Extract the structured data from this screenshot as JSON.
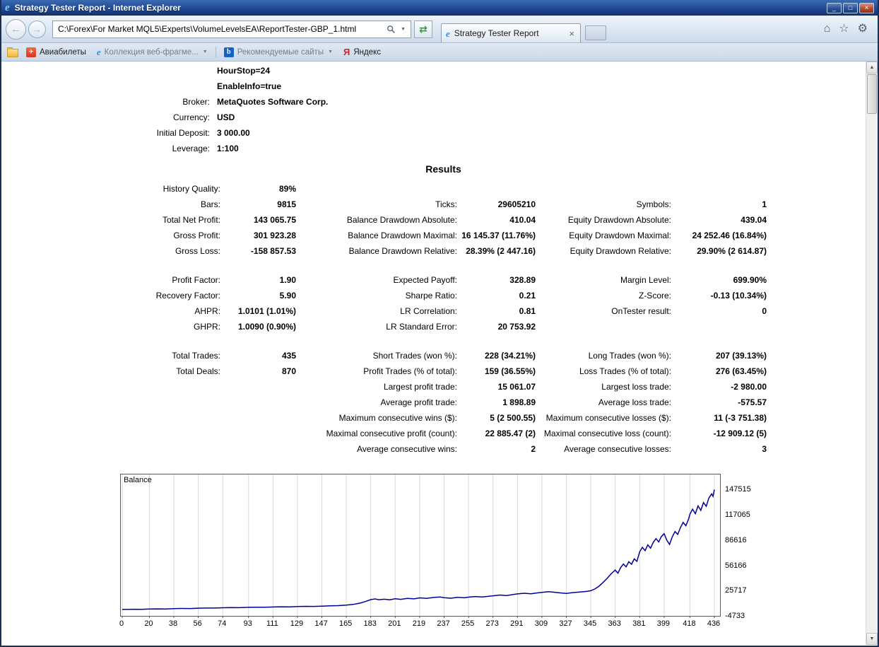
{
  "window": {
    "title": "Strategy Tester Report - Internet Explorer",
    "controls": {
      "minimize": "_",
      "maximize": "□",
      "close": "×"
    }
  },
  "nav": {
    "back": "←",
    "forward": "→",
    "address": "C:\\Forex\\For Market MQL5\\Experts\\VolumeLevelsEA\\ReportTester-GBP_1.html",
    "address_dropdown": "▼",
    "refresh": "⇄",
    "tab": {
      "title": "Strategy Tester Report",
      "close": "×"
    },
    "home_icon": "⌂",
    "favorites_icon": "☆",
    "settings_icon": "⚙"
  },
  "favorites_bar": {
    "items": [
      {
        "label": "Авиабилеты"
      },
      {
        "label": "Коллекция веб-фрагме...",
        "dropdown": "▼"
      },
      {
        "label": "Рекомендуемые сайты",
        "dropdown": "▼"
      },
      {
        "label": "Яндекс"
      }
    ],
    "avia_glyph": "✈",
    "bing_glyph": "b",
    "yandex_glyph": "Я"
  },
  "report": {
    "params": [
      {
        "label": "",
        "value": "HourStop=24"
      },
      {
        "label": "",
        "value": "EnableInfo=true"
      },
      {
        "label": "Broker:",
        "value": "MetaQuotes Software Corp."
      },
      {
        "label": "Currency:",
        "value": "USD"
      },
      {
        "label": "Initial Deposit:",
        "value": "3 000.00"
      },
      {
        "label": "Leverage:",
        "value": "1:100"
      }
    ],
    "results_heading": "Results",
    "results_rows": [
      [
        "History Quality:",
        "89%",
        "",
        "",
        "",
        ""
      ],
      [
        "Bars:",
        "9815",
        "Ticks:",
        "29605210",
        "Symbols:",
        "1"
      ],
      [
        "Total Net Profit:",
        "143 065.75",
        "Balance Drawdown Absolute:",
        "410.04",
        "Equity Drawdown Absolute:",
        "439.04"
      ],
      [
        "Gross Profit:",
        "301 923.28",
        "Balance Drawdown Maximal:",
        "16 145.37 (11.76%)",
        "Equity Drawdown Maximal:",
        "24 252.46 (16.84%)"
      ],
      [
        "Gross Loss:",
        "-158 857.53",
        "Balance Drawdown Relative:",
        "28.39% (2 447.16)",
        "Equity Drawdown Relative:",
        "29.90% (2 614.87)"
      ],
      null,
      [
        "Profit Factor:",
        "1.90",
        "Expected Payoff:",
        "328.89",
        "Margin Level:",
        "699.90%"
      ],
      [
        "Recovery Factor:",
        "5.90",
        "Sharpe Ratio:",
        "0.21",
        "Z-Score:",
        "-0.13 (10.34%)"
      ],
      [
        "AHPR:",
        "1.0101 (1.01%)",
        "LR Correlation:",
        "0.81",
        "OnTester result:",
        "0"
      ],
      [
        "GHPR:",
        "1.0090 (0.90%)",
        "LR Standard Error:",
        "20 753.92",
        "",
        ""
      ],
      null,
      [
        "Total Trades:",
        "435",
        "Short Trades (won %):",
        "228 (34.21%)",
        "Long Trades (won %):",
        "207 (39.13%)"
      ],
      [
        "Total Deals:",
        "870",
        "Profit Trades (% of total):",
        "159 (36.55%)",
        "Loss Trades (% of total):",
        "276 (63.45%)"
      ],
      [
        "",
        "",
        "Largest profit trade:",
        "15 061.07",
        "Largest loss trade:",
        "-2 980.00"
      ],
      [
        "",
        "",
        "Average profit trade:",
        "1 898.89",
        "Average loss trade:",
        "-575.57"
      ],
      [
        "",
        "",
        "Maximum consecutive wins ($):",
        "5 (2 500.55)",
        "Maximum consecutive losses ($):",
        "11 (-3 751.38)"
      ],
      [
        "",
        "",
        "Maximal consecutive profit (count):",
        "22 885.47 (2)",
        "Maximal consecutive loss (count):",
        "-12 909.12 (5)"
      ],
      [
        "",
        "",
        "Average consecutive wins:",
        "2",
        "Average consecutive losses:",
        "3"
      ]
    ]
  },
  "chart_data": {
    "type": "line",
    "title": "Balance",
    "line_color": "#000096",
    "grid": "vertical",
    "x_range": [
      0,
      436
    ],
    "y_range": [
      -4733,
      165847
    ],
    "x_ticks": [
      0,
      20,
      38,
      56,
      74,
      93,
      111,
      129,
      147,
      165,
      183,
      201,
      219,
      237,
      255,
      273,
      291,
      309,
      327,
      345,
      363,
      381,
      399,
      418,
      436
    ],
    "y_ticks": [
      -4733,
      25717,
      56166,
      86616,
      117065,
      147515
    ],
    "points": [
      [
        0,
        3000
      ],
      [
        5,
        3100
      ],
      [
        10,
        3250
      ],
      [
        14,
        3150
      ],
      [
        20,
        3500
      ],
      [
        26,
        3700
      ],
      [
        32,
        3650
      ],
      [
        38,
        4050
      ],
      [
        44,
        4250
      ],
      [
        50,
        4150
      ],
      [
        56,
        4550
      ],
      [
        62,
        4750
      ],
      [
        68,
        4700
      ],
      [
        74,
        5050
      ],
      [
        80,
        5250
      ],
      [
        86,
        5200
      ],
      [
        93,
        5550
      ],
      [
        99,
        5700
      ],
      [
        105,
        5650
      ],
      [
        111,
        6050
      ],
      [
        117,
        6250
      ],
      [
        123,
        6200
      ],
      [
        129,
        6550
      ],
      [
        135,
        6750
      ],
      [
        141,
        6700
      ],
      [
        147,
        7050
      ],
      [
        153,
        7350
      ],
      [
        159,
        7650
      ],
      [
        165,
        8300
      ],
      [
        170,
        9100
      ],
      [
        175,
        10600
      ],
      [
        179,
        12600
      ],
      [
        183,
        14900
      ],
      [
        186,
        15700
      ],
      [
        189,
        14800
      ],
      [
        193,
        15400
      ],
      [
        197,
        14700
      ],
      [
        201,
        15900
      ],
      [
        205,
        15200
      ],
      [
        210,
        16400
      ],
      [
        215,
        15800
      ],
      [
        219,
        17000
      ],
      [
        224,
        16300
      ],
      [
        229,
        17400
      ],
      [
        234,
        18000
      ],
      [
        237,
        17200
      ],
      [
        242,
        16600
      ],
      [
        247,
        17600
      ],
      [
        252,
        17100
      ],
      [
        255,
        17900
      ],
      [
        260,
        18600
      ],
      [
        265,
        18100
      ],
      [
        270,
        18900
      ],
      [
        273,
        19500
      ],
      [
        278,
        20400
      ],
      [
        283,
        19800
      ],
      [
        288,
        21000
      ],
      [
        291,
        21800
      ],
      [
        296,
        22600
      ],
      [
        301,
        22000
      ],
      [
        306,
        23100
      ],
      [
        309,
        23600
      ],
      [
        314,
        24400
      ],
      [
        319,
        23600
      ],
      [
        324,
        22800
      ],
      [
        327,
        22400
      ],
      [
        332,
        23400
      ],
      [
        337,
        24100
      ],
      [
        342,
        24800
      ],
      [
        345,
        25600
      ],
      [
        348,
        27800
      ],
      [
        351,
        31000
      ],
      [
        354,
        35500
      ],
      [
        357,
        40500
      ],
      [
        360,
        46000
      ],
      [
        363,
        50500
      ],
      [
        365,
        46800
      ],
      [
        367,
        53500
      ],
      [
        369,
        57800
      ],
      [
        371,
        54500
      ],
      [
        373,
        60500
      ],
      [
        375,
        57500
      ],
      [
        377,
        64000
      ],
      [
        379,
        61000
      ],
      [
        381,
        72500
      ],
      [
        383,
        78000
      ],
      [
        385,
        74000
      ],
      [
        387,
        81000
      ],
      [
        389,
        77000
      ],
      [
        391,
        84000
      ],
      [
        393,
        88500
      ],
      [
        395,
        84500
      ],
      [
        397,
        91000
      ],
      [
        399,
        94500
      ],
      [
        401,
        86500
      ],
      [
        403,
        81500
      ],
      [
        405,
        90500
      ],
      [
        407,
        97000
      ],
      [
        409,
        93500
      ],
      [
        411,
        101500
      ],
      [
        413,
        108000
      ],
      [
        415,
        104000
      ],
      [
        417,
        112000
      ],
      [
        418,
        118000
      ],
      [
        420,
        124000
      ],
      [
        422,
        118500
      ],
      [
        424,
        128000
      ],
      [
        426,
        122500
      ],
      [
        428,
        132000
      ],
      [
        430,
        127500
      ],
      [
        432,
        137500
      ],
      [
        434,
        142500
      ],
      [
        435,
        139500
      ],
      [
        436,
        147515
      ]
    ]
  }
}
